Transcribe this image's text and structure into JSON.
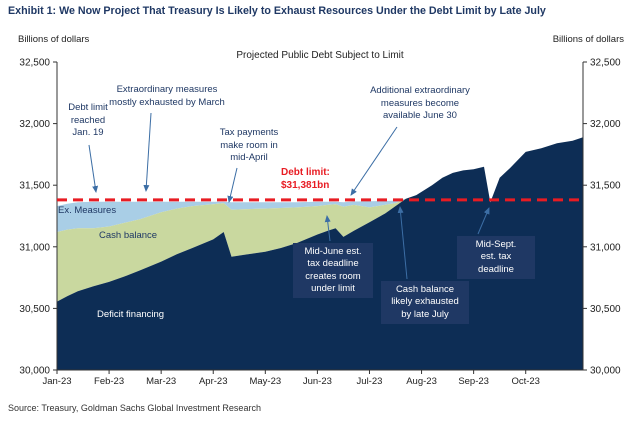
{
  "title": "Exhibit 1: We Now Project That Treasury Is Likely to Exhaust Resources Under the Debt Limit by Late July",
  "source": "Source: Treasury, Goldman Sachs Global Investment Research",
  "axis_unit_left": "Billions of dollars",
  "axis_unit_right": "Billions of dollars",
  "annotations": {
    "debt_limit_reached": "Debt limit\nreached\nJan. 19",
    "extraordinary_measures": "Extraordinary measures\nmostly exhausted by March",
    "tax_payments": "Tax payments\nmake room in\nmid-April",
    "additional_em": "Additional extraordinary\nmeasures become\navailable June 30",
    "debt_limit_callout": "Debt limit:\n$31,381bn",
    "midjune_box": "Mid-June est.\ntax deadline\ncreates room\nunder limit",
    "cash_exhausted_box": "Cash balance\nlikely exhausted\nby late July",
    "midsept_box": "Mid-Sept.\nest. tax\ndeadline"
  },
  "colors": {
    "navy": "#0d2d55",
    "cash_green": "#c9d89f",
    "ex_measures_blue": "#a9cee6",
    "red": "#e81c23",
    "arrow": "#3c6ea5",
    "axis": "#333333",
    "tick_text": "#222222"
  },
  "chart_data": {
    "type": "area",
    "title": "Projected Public Debt Subject to Limit",
    "ylabel": "Billions of dollars",
    "ylim": [
      30000,
      32500
    ],
    "xlim_months": [
      0,
      10.1
    ],
    "y_ticks": [
      30000,
      30500,
      31000,
      31500,
      32000,
      32500
    ],
    "y_tick_labels": [
      "30,000",
      "30,500",
      "31,000",
      "31,500",
      "32,000",
      "32,500"
    ],
    "x_tick_labels": [
      "Jan-23",
      "Feb-23",
      "Mar-23",
      "Apr-23",
      "May-23",
      "Jun-23",
      "Jul-23",
      "Aug-23",
      "Sep-23",
      "Oct-23"
    ],
    "debt_limit": 31381,
    "legend_position": "in-plot labels",
    "grid": false,
    "series": [
      {
        "name": "Deficit financing",
        "role": "debt-subject-to-limit"
      },
      {
        "name": "Cash balance",
        "role": "stacked-above-debt"
      },
      {
        "name": "Ex. Measures",
        "role": "stacked-above-cash"
      }
    ],
    "points": {
      "x": [
        0.0,
        0.2,
        0.4,
        0.7,
        1.0,
        1.3,
        1.6,
        2.0,
        2.3,
        2.6,
        3.0,
        3.2,
        3.35,
        3.6,
        4.0,
        4.3,
        4.6,
        5.0,
        5.2,
        5.35,
        5.5,
        5.7,
        6.0,
        6.3,
        6.5,
        6.7,
        6.9,
        7.2,
        7.4,
        7.6,
        7.8,
        8.0,
        8.2,
        8.32,
        8.5,
        8.7,
        9.0,
        9.3,
        9.6,
        9.9,
        10.1
      ],
      "debt": [
        30555,
        30600,
        30640,
        30680,
        30715,
        30760,
        30810,
        30880,
        30940,
        30990,
        31060,
        31120,
        30920,
        30935,
        30960,
        30990,
        31030,
        31100,
        31130,
        31150,
        31080,
        31130,
        31200,
        31270,
        31330,
        31390,
        31420,
        31500,
        31560,
        31600,
        31620,
        31630,
        31650,
        31360,
        31560,
        31640,
        31770,
        31800,
        31840,
        31860,
        31890
      ],
      "cash_top": [
        31120,
        31140,
        31150,
        31150,
        31165,
        31195,
        31225,
        31280,
        31310,
        31330,
        31345,
        31355,
        31300,
        31305,
        31310,
        31315,
        31320,
        31330,
        31340,
        31345,
        31325,
        31340,
        31320,
        31340,
        31355,
        31390,
        31420,
        31500,
        31560,
        31600,
        31620,
        31630,
        31650,
        31360,
        31560,
        31640,
        31770,
        31800,
        31840,
        31860,
        31890
      ],
      "exm_top": [
        31330,
        31350,
        31362,
        31365,
        31365,
        31365,
        31365,
        31365,
        31365,
        31365,
        31365,
        31365,
        31362,
        31362,
        31362,
        31362,
        31362,
        31365,
        31365,
        31365,
        31362,
        31368,
        31370,
        31372,
        31375,
        31390,
        31420,
        31500,
        31560,
        31600,
        31620,
        31630,
        31650,
        31360,
        31560,
        31640,
        31770,
        31800,
        31840,
        31860,
        31890
      ]
    }
  }
}
